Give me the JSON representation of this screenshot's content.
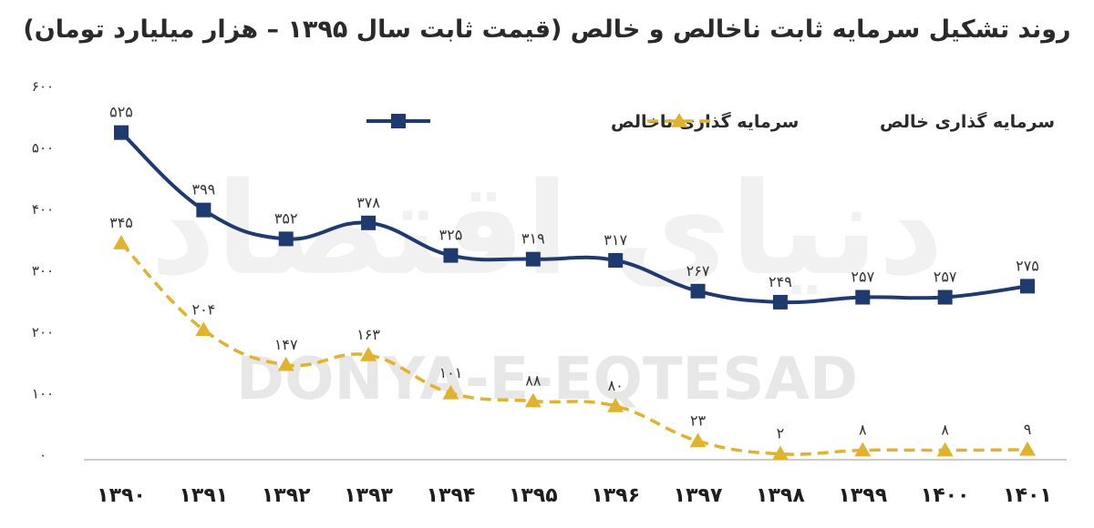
{
  "chart_data": {
    "type": "line",
    "title": "روند تشکیل سرمایه ثابت ناخالص و خالص (قیمت ثابت سال ۱۳۹۵ – هزار میلیارد تومان)",
    "xlabel": "",
    "ylabel": "",
    "categories": [
      "۱۳۹۰",
      "۱۳۹۱",
      "۱۳۹۲",
      "۱۳۹۳",
      "۱۳۹۴",
      "۱۳۹۵",
      "۱۳۹۶",
      "۱۳۹۷",
      "۱۳۹۸",
      "۱۳۹۹",
      "۱۴۰۰",
      "۱۴۰۱"
    ],
    "yticks": [
      {
        "value": 0,
        "label": "۰"
      },
      {
        "value": 100,
        "label": "۱۰۰"
      },
      {
        "value": 200,
        "label": "۲۰۰"
      },
      {
        "value": 300,
        "label": "۳۰۰"
      },
      {
        "value": 400,
        "label": "۴۰۰"
      },
      {
        "value": 500,
        "label": "۵۰۰"
      },
      {
        "value": 600,
        "label": "۶۰۰"
      }
    ],
    "ylim": [
      0,
      600
    ],
    "grid": false,
    "legend_position": "top-center",
    "series": [
      {
        "name": "سرمایه گذاری ناخالص",
        "key": "gross",
        "color": "#1f3a6e",
        "marker": "square",
        "dash": "solid",
        "values": [
          525,
          399,
          352,
          378,
          325,
          319,
          317,
          267,
          249,
          257,
          257,
          275
        ],
        "labels": [
          "۵۲۵",
          "۳۹۹",
          "۳۵۲",
          "۳۷۸",
          "۳۲۵",
          "۳۱۹",
          "۳۱۷",
          "۲۶۷",
          "۲۴۹",
          "۲۵۷",
          "۲۵۷",
          "۲۷۵"
        ]
      },
      {
        "name": "سرمایه گذاری خالص",
        "key": "net",
        "color": "#e0b22e",
        "marker": "triangle",
        "dash": "dashed",
        "values": [
          345,
          204,
          147,
          163,
          101,
          88,
          80,
          23,
          2,
          8,
          8,
          9
        ],
        "labels": [
          "۳۴۵",
          "۲۰۴",
          "۱۴۷",
          "۱۶۳",
          "۱۰۱",
          "۸۸",
          "۸۰",
          "۲۳",
          "۲",
          "۸",
          "۸",
          "۹"
        ]
      }
    ]
  },
  "watermark": {
    "latin": "DONYA-E-EQTESAD",
    "persian": "دنیای اقتصاد"
  }
}
